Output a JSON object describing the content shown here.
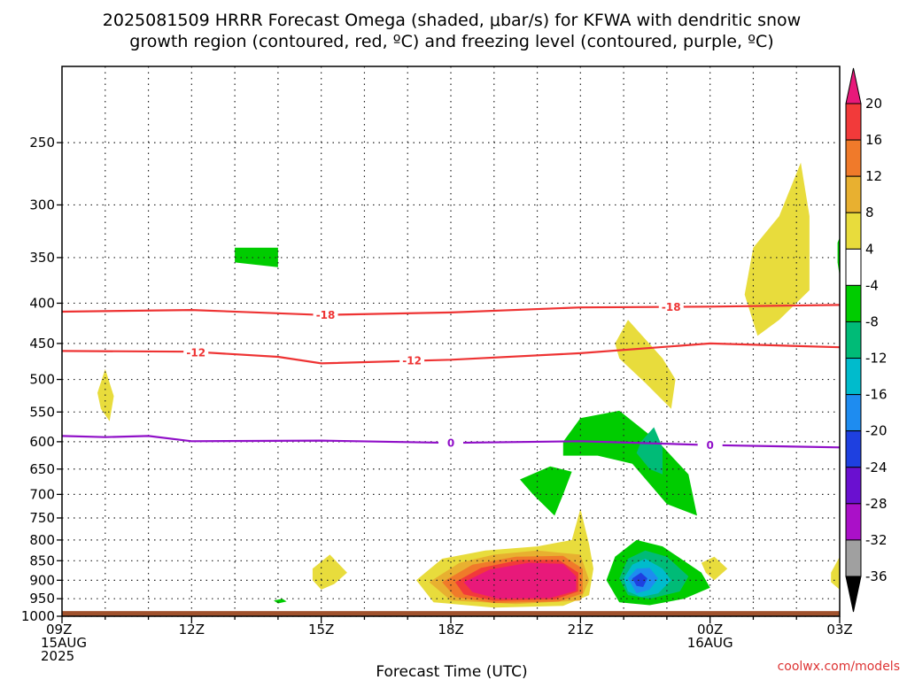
{
  "title_line1": "2025081509 HRRR Forecast Omega (shaded, μbar/s) for KFWA with dendritic snow",
  "title_line2": "growth region (contoured, red, ºC) and freezing level (contoured, purple, ºC)",
  "credit": "coolwx.com/models",
  "chart_data": {
    "type": "heatmap",
    "xlabel": "Forecast Time (UTC)",
    "x_ticks": [
      {
        "hour": 0,
        "lines": [
          "09Z",
          "15AUG",
          "2025"
        ]
      },
      {
        "hour": 3,
        "lines": [
          "12Z"
        ]
      },
      {
        "hour": 6,
        "lines": [
          "15Z"
        ]
      },
      {
        "hour": 9,
        "lines": [
          "18Z"
        ]
      },
      {
        "hour": 12,
        "lines": [
          "21Z"
        ]
      },
      {
        "hour": 15,
        "lines": [
          "00Z",
          "16AUG"
        ]
      },
      {
        "hour": 18,
        "lines": [
          "03Z"
        ]
      }
    ],
    "xlim": [
      0,
      18
    ],
    "y_ticks": [
      250,
      300,
      350,
      400,
      450,
      500,
      550,
      600,
      650,
      700,
      750,
      800,
      850,
      900,
      950,
      1000
    ],
    "ylim": [
      200,
      1000
    ],
    "y_scale": "log",
    "grid": true,
    "colorbar": {
      "labels": [
        20,
        16,
        12,
        8,
        4,
        -4,
        -8,
        -12,
        -16,
        -20,
        -24,
        -28,
        -32,
        -36
      ],
      "colors": [
        "#e8197a",
        "#f23a3a",
        "#f07a2a",
        "#e8b030",
        "#e8dc3c",
        "#ffffff",
        "#00cc00",
        "#00bb77",
        "#00bbcc",
        "#1e8cf0",
        "#1e40e0",
        "#6a10d0",
        "#aa10c8",
        "#a0a0a0",
        "#000000"
      ]
    },
    "contours": [
      {
        "name": "dgz_-18",
        "color": "#ee3333",
        "label": "-18",
        "points": [
          [
            0,
            410
          ],
          [
            3,
            408
          ],
          [
            6,
            414
          ],
          [
            9,
            411
          ],
          [
            12,
            405
          ],
          [
            15,
            404
          ],
          [
            18,
            402
          ]
        ],
        "label_at": [
          [
            6.1,
            414
          ],
          [
            14.1,
            404
          ]
        ]
      },
      {
        "name": "dgz_-12",
        "color": "#ee3333",
        "label": "-12",
        "points": [
          [
            0,
            460
          ],
          [
            3,
            461
          ],
          [
            5,
            468
          ],
          [
            6,
            477
          ],
          [
            9,
            472
          ],
          [
            12,
            463
          ],
          [
            15,
            450
          ],
          [
            18,
            455
          ]
        ],
        "label_at": [
          [
            3.1,
            462
          ],
          [
            8.1,
            473
          ]
        ]
      },
      {
        "name": "freezing_0",
        "color": "#9010c8",
        "label": "0",
        "points": [
          [
            0,
            590
          ],
          [
            1,
            592
          ],
          [
            2,
            590
          ],
          [
            3,
            599
          ],
          [
            6,
            598
          ],
          [
            9,
            602
          ],
          [
            12,
            599
          ],
          [
            15,
            606
          ],
          [
            18,
            610
          ]
        ],
        "label_at": [
          [
            9.0,
            602
          ],
          [
            15.0,
            606
          ]
        ]
      }
    ],
    "surface": {
      "color": "#a0522d",
      "pressure": 985
    },
    "omega_regions": [
      {
        "name": "ascent-core-20z",
        "color": "#e8dc3c",
        "level": 4,
        "points": [
          [
            8.2,
            900
          ],
          [
            8.8,
            845
          ],
          [
            9.8,
            825
          ],
          [
            11,
            815
          ],
          [
            11.8,
            800
          ],
          [
            12,
            730
          ],
          [
            12.2,
            810
          ],
          [
            12.3,
            870
          ],
          [
            12.2,
            940
          ],
          [
            11.6,
            970
          ],
          [
            10,
            975
          ],
          [
            8.6,
            960
          ]
        ]
      },
      {
        "name": "ascent-core-20z-8",
        "color": "#e8b030",
        "level": 8,
        "points": [
          [
            8.5,
            905
          ],
          [
            9.2,
            855
          ],
          [
            10,
            835
          ],
          [
            11,
            825
          ],
          [
            12.0,
            835
          ],
          [
            12.2,
            900
          ],
          [
            12,
            955
          ],
          [
            10.5,
            965
          ],
          [
            9,
            955
          ]
        ]
      },
      {
        "name": "ascent-core-20z-12",
        "color": "#f07a2a",
        "level": 12,
        "points": [
          [
            8.8,
            905
          ],
          [
            9.5,
            860
          ],
          [
            10.5,
            840
          ],
          [
            11.6,
            838
          ],
          [
            12.05,
            870
          ],
          [
            12.05,
            935
          ],
          [
            11.5,
            958
          ],
          [
            10,
            962
          ],
          [
            9.1,
            945
          ]
        ]
      },
      {
        "name": "ascent-core-20z-16",
        "color": "#f23a3a",
        "level": 16,
        "points": [
          [
            9.1,
            905
          ],
          [
            9.7,
            868
          ],
          [
            10.6,
            848
          ],
          [
            11.5,
            848
          ],
          [
            11.95,
            880
          ],
          [
            11.95,
            930
          ],
          [
            11.4,
            952
          ],
          [
            10,
            956
          ],
          [
            9.3,
            938
          ]
        ]
      },
      {
        "name": "ascent-core-20z-20",
        "color": "#e8197a",
        "level": 20,
        "points": [
          [
            9.3,
            905
          ],
          [
            9.9,
            872
          ],
          [
            10.8,
            855
          ],
          [
            11.6,
            858
          ],
          [
            11.9,
            890
          ],
          [
            11.9,
            928
          ],
          [
            11.3,
            948
          ],
          [
            10.1,
            950
          ],
          [
            9.5,
            932
          ]
        ]
      },
      {
        "name": "descent-core-22z",
        "color": "#00cc00",
        "level": -4,
        "points": [
          [
            12.6,
            900
          ],
          [
            12.8,
            840
          ],
          [
            13.3,
            800
          ],
          [
            13.9,
            815
          ],
          [
            14.8,
            880
          ],
          [
            15.0,
            920
          ],
          [
            14.4,
            950
          ],
          [
            13.6,
            968
          ],
          [
            12.9,
            960
          ]
        ]
      },
      {
        "name": "descent-core-22z-8",
        "color": "#00bb77",
        "level": -8,
        "points": [
          [
            12.9,
            895
          ],
          [
            13.1,
            845
          ],
          [
            13.5,
            825
          ],
          [
            14.0,
            840
          ],
          [
            14.5,
            890
          ],
          [
            14.3,
            930
          ],
          [
            13.6,
            950
          ],
          [
            13.1,
            940
          ]
        ]
      },
      {
        "name": "descent-core-22z-12",
        "color": "#00bbcc",
        "level": -12,
        "points": [
          [
            13.0,
            895
          ],
          [
            13.2,
            860
          ],
          [
            13.5,
            845
          ],
          [
            13.9,
            870
          ],
          [
            14.1,
            900
          ],
          [
            13.8,
            935
          ],
          [
            13.4,
            945
          ],
          [
            13.1,
            930
          ]
        ]
      },
      {
        "name": "descent-core-22z-16",
        "color": "#1e8cf0",
        "level": -16,
        "points": [
          [
            13.1,
            895
          ],
          [
            13.3,
            870
          ],
          [
            13.6,
            868
          ],
          [
            13.8,
            895
          ],
          [
            13.6,
            925
          ],
          [
            13.3,
            935
          ]
        ]
      },
      {
        "name": "descent-core-22z-20",
        "color": "#1e40e0",
        "level": -20,
        "points": [
          [
            13.2,
            895
          ],
          [
            13.4,
            880
          ],
          [
            13.55,
            895
          ],
          [
            13.45,
            918
          ],
          [
            13.3,
            915
          ]
        ]
      },
      {
        "name": "descent-mid-21z",
        "color": "#00cc00",
        "level": -4,
        "points": [
          [
            11.6,
            600
          ],
          [
            12.0,
            560
          ],
          [
            12.9,
            548
          ],
          [
            13.8,
            600
          ],
          [
            14.5,
            660
          ],
          [
            14.7,
            745
          ],
          [
            14.0,
            720
          ],
          [
            13.2,
            640
          ],
          [
            12.4,
            625
          ],
          [
            11.6,
            625
          ]
        ]
      },
      {
        "name": "descent-mid-21z-8",
        "color": "#00bb77",
        "level": -8,
        "points": [
          [
            13.4,
            600
          ],
          [
            13.7,
            575
          ],
          [
            13.9,
            610
          ],
          [
            13.9,
            660
          ],
          [
            13.6,
            650
          ],
          [
            13.3,
            620
          ]
        ]
      },
      {
        "name": "descent-mid-20z",
        "color": "#00cc00",
        "level": -4,
        "points": [
          [
            10.6,
            670
          ],
          [
            11.3,
            645
          ],
          [
            11.8,
            655
          ],
          [
            11.6,
            700
          ],
          [
            11.4,
            745
          ],
          [
            10.9,
            700
          ]
        ]
      },
      {
        "name": "ascent-upper-02z",
        "color": "#e8dc3c",
        "level": 4,
        "points": [
          [
            15.8,
            390
          ],
          [
            16.0,
            340
          ],
          [
            16.6,
            310
          ],
          [
            17.1,
            265
          ],
          [
            17.3,
            310
          ],
          [
            17.3,
            385
          ],
          [
            16.6,
            420
          ],
          [
            16.1,
            440
          ]
        ]
      },
      {
        "name": "ascent-upper-23z",
        "color": "#e8dc3c",
        "level": 4,
        "points": [
          [
            12.8,
            450
          ],
          [
            13.1,
            420
          ],
          [
            13.9,
            470
          ],
          [
            14.2,
            500
          ],
          [
            14.1,
            545
          ],
          [
            13.5,
            505
          ],
          [
            12.9,
            470
          ]
        ]
      },
      {
        "name": "ascent-mid-10z",
        "color": "#e8dc3c",
        "level": 4,
        "points": [
          [
            0.82,
            520
          ],
          [
            1.0,
            485
          ],
          [
            1.2,
            525
          ],
          [
            1.1,
            565
          ],
          [
            0.9,
            545
          ]
        ]
      },
      {
        "name": "ascent-low-15z",
        "color": "#e8dc3c",
        "level": 4,
        "points": [
          [
            5.8,
            870
          ],
          [
            6.2,
            835
          ],
          [
            6.6,
            880
          ],
          [
            6.3,
            910
          ],
          [
            6.0,
            925
          ],
          [
            5.8,
            900
          ]
        ]
      },
      {
        "name": "ascent-low-00z",
        "color": "#e8dc3c",
        "level": 4,
        "points": [
          [
            14.8,
            855
          ],
          [
            15.1,
            840
          ],
          [
            15.4,
            870
          ],
          [
            15.1,
            900
          ],
          [
            14.9,
            880
          ]
        ]
      },
      {
        "name": "ascent-low-03z",
        "color": "#e8dc3c",
        "level": 4,
        "points": [
          [
            17.8,
            880
          ],
          [
            18.0,
            840
          ],
          [
            18.0,
            925
          ],
          [
            17.8,
            905
          ]
        ]
      },
      {
        "name": "descent-upper-13z",
        "color": "#00cc00",
        "level": -4,
        "points": [
          [
            4.0,
            340
          ],
          [
            5.0,
            340
          ],
          [
            5.0,
            360
          ],
          [
            4.6,
            358
          ],
          [
            4.0,
            355
          ]
        ]
      },
      {
        "name": "descent-low-14z",
        "color": "#00cc00",
        "level": -4,
        "points": [
          [
            4.9,
            955
          ],
          [
            5.1,
            950
          ],
          [
            5.2,
            958
          ],
          [
            5.0,
            963
          ]
        ]
      },
      {
        "name": "descent-upper-03z",
        "color": "#00cc00",
        "level": -4,
        "points": [
          [
            17.95,
            335
          ],
          [
            18.0,
            330
          ],
          [
            18.0,
            370
          ],
          [
            17.95,
            355
          ]
        ]
      }
    ]
  }
}
